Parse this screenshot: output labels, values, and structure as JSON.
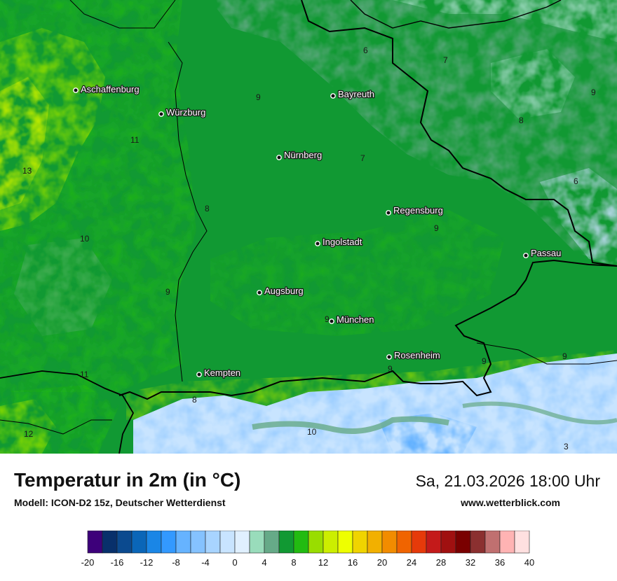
{
  "title": "Temperatur in 2m (in °C)",
  "model": "Modell: ICON-D2 15z, Deutscher Wetterdienst",
  "datetime": "Sa, 21.03.2026 18:00 Uhr",
  "website": "www.wetterblick.com",
  "cities": [
    {
      "name": "Aschaffenburg"
    },
    {
      "name": "Würzburg"
    },
    {
      "name": "Bayreuth"
    },
    {
      "name": "Nürnberg"
    },
    {
      "name": "Regensburg"
    },
    {
      "name": "Ingolstadt"
    },
    {
      "name": "Passau"
    },
    {
      "name": "Augsburg"
    },
    {
      "name": "München"
    },
    {
      "name": "Rosenheim"
    },
    {
      "name": "Kempten"
    }
  ],
  "contour_labels": [
    "6",
    "7",
    "9",
    "9",
    "8",
    "11",
    "13",
    "7",
    "6",
    "8",
    "9",
    "10",
    "9",
    "9",
    "9",
    "9",
    "9",
    "11",
    "8",
    "12",
    "10",
    "3"
  ],
  "scale": {
    "colors": [
      "#3d007a",
      "#08306b",
      "#0b4a8f",
      "#0a66b8",
      "#1a86e6",
      "#3399ff",
      "#66b3ff",
      "#85c2ff",
      "#a8d4ff",
      "#c8e4ff",
      "#e0f0ff",
      "#99dcbb",
      "#66aa88",
      "#119933",
      "#22bb11",
      "#99dd00",
      "#ccee00",
      "#eeff00",
      "#f0d400",
      "#f2b000",
      "#f28c00",
      "#f06400",
      "#e63a0a",
      "#c41a1a",
      "#a01010",
      "#7a0000",
      "#8b3030",
      "#c07070",
      "#ffb3b3",
      "#ffe0e0"
    ],
    "ticks": [
      "-20",
      "-16",
      "-12",
      "-8",
      "-4",
      "0",
      "4",
      "8",
      "12",
      "16",
      "20",
      "24",
      "28",
      "32",
      "36",
      "40"
    ]
  }
}
